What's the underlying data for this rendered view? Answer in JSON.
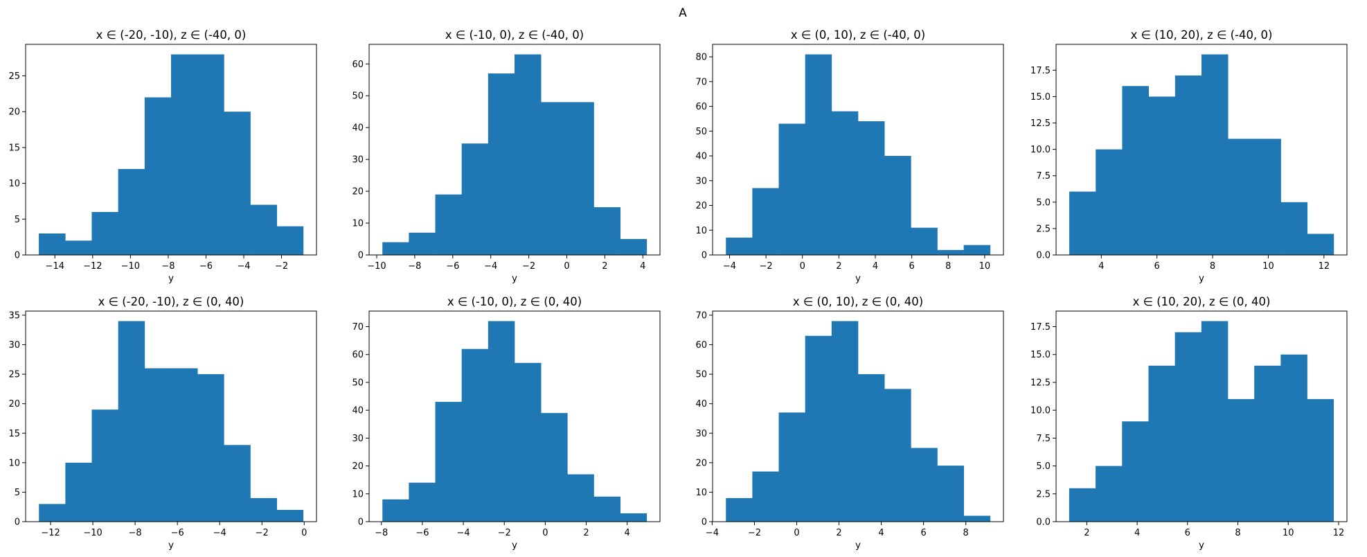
{
  "figure": {
    "title": "A"
  },
  "chart_data": [
    {
      "type": "bar",
      "title": "x ∈ (-20, -10), z ∈ (-40, 0)",
      "xlabel": "y",
      "edges": [
        -14.85,
        -13.45,
        -12.05,
        -10.65,
        -9.25,
        -7.85,
        -6.45,
        -5.05,
        -3.65,
        -2.25,
        -0.85
      ],
      "values": [
        3,
        2,
        6,
        12,
        22,
        28,
        28,
        20,
        7,
        4
      ],
      "xlim": [
        -15.55,
        -0.15
      ],
      "ylim": [
        0,
        29.4
      ],
      "xticks": [
        -14,
        -12,
        -10,
        -8,
        -6,
        -4,
        -2
      ],
      "xticklabels": [
        "−14",
        "−12",
        "−10",
        "−8",
        "−6",
        "−4",
        "−2"
      ],
      "yticks": [
        0,
        5,
        10,
        15,
        20,
        25
      ],
      "yticklabels": [
        "0",
        "5",
        "10",
        "15",
        "20",
        "25"
      ]
    },
    {
      "type": "bar",
      "title": "x ∈ (-10, 0), z ∈ (-40, 0)",
      "xlabel": "y",
      "edges": [
        -9.7,
        -8.31,
        -6.92,
        -5.53,
        -4.14,
        -2.75,
        -1.36,
        0.03,
        1.42,
        2.81,
        4.2
      ],
      "values": [
        4,
        7,
        19,
        35,
        57,
        63,
        48,
        48,
        15,
        5
      ],
      "xlim": [
        -10.4,
        4.9
      ],
      "ylim": [
        0,
        66.15
      ],
      "xticks": [
        -10,
        -8,
        -6,
        -4,
        -2,
        0,
        2,
        4
      ],
      "xticklabels": [
        "−10",
        "−8",
        "−6",
        "−4",
        "−2",
        "0",
        "2",
        "4"
      ],
      "yticks": [
        0,
        10,
        20,
        30,
        40,
        50,
        60
      ],
      "yticklabels": [
        "0",
        "10",
        "20",
        "30",
        "40",
        "50",
        "60"
      ]
    },
    {
      "type": "bar",
      "title": "x ∈ (0, 10), z ∈ (-40, 0)",
      "xlabel": "y",
      "edges": [
        -4.2,
        -2.75,
        -1.3,
        0.15,
        1.6,
        3.05,
        4.5,
        5.95,
        7.4,
        8.85,
        10.3
      ],
      "values": [
        7,
        27,
        53,
        81,
        58,
        54,
        40,
        11,
        2,
        4
      ],
      "xlim": [
        -4.93,
        11.03
      ],
      "ylim": [
        0,
        85.05
      ],
      "xticks": [
        -4,
        -2,
        0,
        2,
        4,
        6,
        8,
        10
      ],
      "xticklabels": [
        "−4",
        "−2",
        "0",
        "2",
        "4",
        "6",
        "8",
        "10"
      ],
      "yticks": [
        0,
        10,
        20,
        30,
        40,
        50,
        60,
        70,
        80
      ],
      "yticklabels": [
        "0",
        "10",
        "20",
        "30",
        "40",
        "50",
        "60",
        "70",
        "80"
      ]
    },
    {
      "type": "bar",
      "title": "x ∈ (10, 20), z ∈ (-40, 0)",
      "xlabel": "y",
      "edges": [
        2.85,
        3.8,
        4.75,
        5.7,
        6.65,
        7.6,
        8.55,
        9.5,
        10.45,
        11.4,
        12.35
      ],
      "values": [
        6,
        10,
        16,
        15,
        17,
        19,
        11,
        11,
        5,
        2
      ],
      "xlim": [
        2.375,
        12.825
      ],
      "ylim": [
        0,
        19.95
      ],
      "xticks": [
        4,
        6,
        8,
        10,
        12
      ],
      "xticklabels": [
        "4",
        "6",
        "8",
        "10",
        "12"
      ],
      "yticks": [
        0,
        2.5,
        5,
        7.5,
        10,
        12.5,
        15,
        17.5
      ],
      "yticklabels": [
        "0.0",
        "2.5",
        "5.0",
        "7.5",
        "10.0",
        "12.5",
        "15.0",
        "17.5"
      ]
    },
    {
      "type": "bar",
      "title": "x ∈ (-20, -10), z ∈ (0, 40)",
      "xlabel": "y",
      "edges": [
        -12.55,
        -11.3,
        -10.05,
        -8.8,
        -7.55,
        -6.3,
        -5.05,
        -3.8,
        -2.55,
        -1.3,
        -0.05
      ],
      "values": [
        3,
        10,
        19,
        34,
        26,
        26,
        25,
        13,
        4,
        2
      ],
      "xlim": [
        -13.18,
        0.58
      ],
      "ylim": [
        0,
        35.7
      ],
      "xticks": [
        -12,
        -10,
        -8,
        -6,
        -4,
        -2,
        0
      ],
      "xticklabels": [
        "−12",
        "−10",
        "−8",
        "−6",
        "−4",
        "−2",
        "0"
      ],
      "yticks": [
        0,
        5,
        10,
        15,
        20,
        25,
        30,
        35
      ],
      "yticklabels": [
        "0",
        "5",
        "10",
        "15",
        "20",
        "25",
        "30",
        "35"
      ]
    },
    {
      "type": "bar",
      "title": "x ∈ (-10, 0), z ∈ (0, 40)",
      "xlabel": "y",
      "edges": [
        -7.95,
        -6.66,
        -5.37,
        -4.08,
        -2.79,
        -1.5,
        -0.21,
        1.08,
        2.37,
        3.66,
        4.95
      ],
      "values": [
        8,
        14,
        43,
        62,
        72,
        57,
        39,
        17,
        9,
        3
      ],
      "xlim": [
        -8.6,
        5.6
      ],
      "ylim": [
        0,
        75.6
      ],
      "xticks": [
        -8,
        -6,
        -4,
        -2,
        0,
        2,
        4
      ],
      "xticklabels": [
        "−8",
        "−6",
        "−4",
        "−2",
        "0",
        "2",
        "4"
      ],
      "yticks": [
        0,
        10,
        20,
        30,
        40,
        50,
        60,
        70
      ],
      "yticklabels": [
        "0",
        "10",
        "20",
        "30",
        "40",
        "50",
        "60",
        "70"
      ]
    },
    {
      "type": "bar",
      "title": "x ∈ (0, 10), z ∈ (0, 40)",
      "xlabel": "y",
      "edges": [
        -3.35,
        -2.1,
        -0.85,
        0.4,
        1.65,
        2.9,
        4.15,
        5.4,
        6.65,
        7.9,
        9.15
      ],
      "values": [
        8,
        17,
        37,
        63,
        68,
        50,
        45,
        25,
        19,
        2
      ],
      "xlim": [
        -3.98,
        9.78
      ],
      "ylim": [
        0,
        71.4
      ],
      "xticks": [
        -4,
        -2,
        0,
        2,
        4,
        6,
        8
      ],
      "xticklabels": [
        "−4",
        "−2",
        "0",
        "2",
        "4",
        "6",
        "8"
      ],
      "yticks": [
        0,
        10,
        20,
        30,
        40,
        50,
        60,
        70
      ],
      "yticklabels": [
        "0",
        "10",
        "20",
        "30",
        "40",
        "50",
        "60",
        "70"
      ]
    },
    {
      "type": "bar",
      "title": "x ∈ (10, 20), z ∈ (0, 40)",
      "xlabel": "y",
      "edges": [
        1.3,
        2.35,
        3.4,
        4.45,
        5.5,
        6.55,
        7.6,
        8.65,
        9.7,
        10.75,
        11.8
      ],
      "values": [
        3,
        5,
        9,
        14,
        17,
        18,
        11,
        14,
        15,
        11
      ],
      "xlim": [
        0.78,
        12.33
      ],
      "ylim": [
        0,
        18.9
      ],
      "xticks": [
        2,
        4,
        6,
        8,
        10,
        12
      ],
      "xticklabels": [
        "2",
        "4",
        "6",
        "8",
        "10",
        "12"
      ],
      "yticks": [
        0,
        2.5,
        5,
        7.5,
        10,
        12.5,
        15,
        17.5
      ],
      "yticklabels": [
        "0.0",
        "2.5",
        "5.0",
        "7.5",
        "10.0",
        "12.5",
        "15.0",
        "17.5"
      ]
    }
  ],
  "colors": {
    "bar": "#1f77b4",
    "axis": "#000000",
    "background": "#ffffff"
  }
}
